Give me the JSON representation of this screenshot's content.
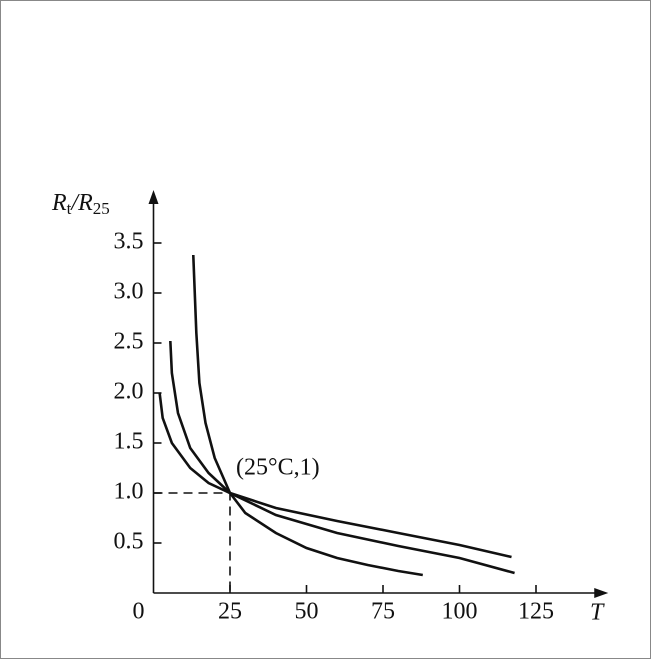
{
  "chart_data": {
    "type": "line",
    "y_label": [
      "R",
      "t",
      "/R",
      "25"
    ],
    "x_label": "T",
    "xlim": [
      0,
      146
    ],
    "ylim": [
      0,
      3.95
    ],
    "xticks": [
      0,
      25,
      50,
      75,
      100,
      125
    ],
    "yticks": [
      0.5,
      {
        "value": 1,
        "label": "1.0"
      },
      1.5,
      {
        "value": 2,
        "label": "2.0"
      },
      2.5,
      {
        "value": 3,
        "label": "3.0"
      },
      3.5
    ],
    "annotation": {
      "text": "(25°C,1)",
      "x": 25,
      "y": 1
    },
    "series": [
      {
        "color": "#111111",
        "x": [
          13,
          14,
          15,
          17,
          20,
          25,
          30,
          40,
          50,
          60,
          70,
          80,
          88
        ],
        "values": [
          3.38,
          2.6,
          2.1,
          1.7,
          1.35,
          1.0,
          0.8,
          0.6,
          0.45,
          0.35,
          0.28,
          0.22,
          0.18
        ]
      },
      {
        "color": "#111111",
        "x": [
          5.5,
          6,
          8,
          12,
          18,
          25,
          40,
          60,
          80,
          100,
          118
        ],
        "values": [
          2.52,
          2.2,
          1.8,
          1.45,
          1.2,
          1.0,
          0.78,
          0.6,
          0.47,
          0.35,
          0.2
        ]
      },
      {
        "color": "#111111",
        "x": [
          2,
          3,
          6,
          12,
          18,
          25,
          40,
          60,
          80,
          100,
          117
        ],
        "values": [
          2.0,
          1.75,
          1.5,
          1.25,
          1.1,
          1.0,
          0.85,
          0.72,
          0.6,
          0.48,
          0.36
        ]
      }
    ]
  }
}
